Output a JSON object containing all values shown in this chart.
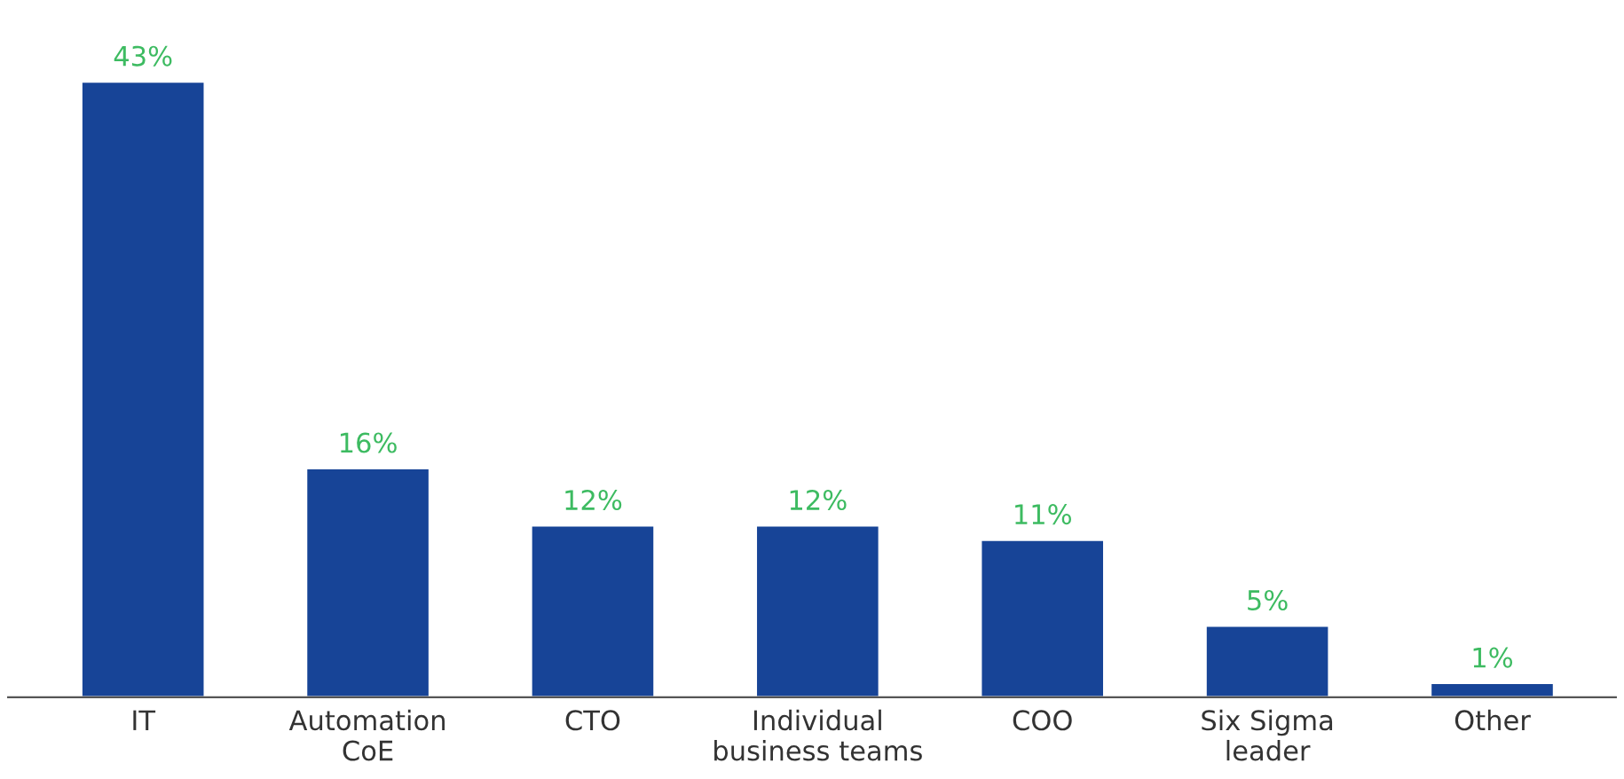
{
  "chart_data": {
    "type": "bar",
    "categories": [
      "IT",
      "Automation\nCoE",
      "CTO",
      "Individual\nbusiness teams",
      "COO",
      "Six Sigma\nleader",
      "Other"
    ],
    "values": [
      43,
      16,
      12,
      12,
      11,
      5,
      1
    ],
    "value_labels": [
      "43%",
      "16%",
      "12%",
      "12%",
      "11%",
      "5%",
      "1%"
    ],
    "color": "#174497"
  }
}
